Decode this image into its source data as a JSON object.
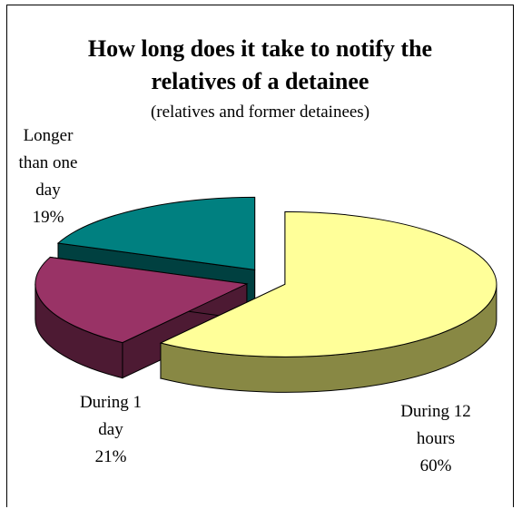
{
  "chart_data": {
    "type": "pie",
    "title_lines": [
      "How long does it take to notify the",
      "relatives of a detainee"
    ],
    "subtitle": "(relatives and former detainees)",
    "slices": [
      {
        "name": "During 12 hours",
        "value": 60,
        "label_lines": [
          "During 12",
          "hours",
          "60%"
        ],
        "top_color": "#ffff99",
        "side_color": "#888844"
      },
      {
        "name": "During 1 day",
        "value": 21,
        "label_lines": [
          "During 1",
          "day",
          "21%"
        ],
        "top_color": "#993366",
        "side_color": "#4d1a33"
      },
      {
        "name": "Longer than one day",
        "value": 19,
        "label_lines": [
          "Longer",
          "than one",
          "day",
          "19%"
        ],
        "top_color": "#008080",
        "side_color": "#004040"
      }
    ],
    "legend": "none",
    "grid": false
  }
}
